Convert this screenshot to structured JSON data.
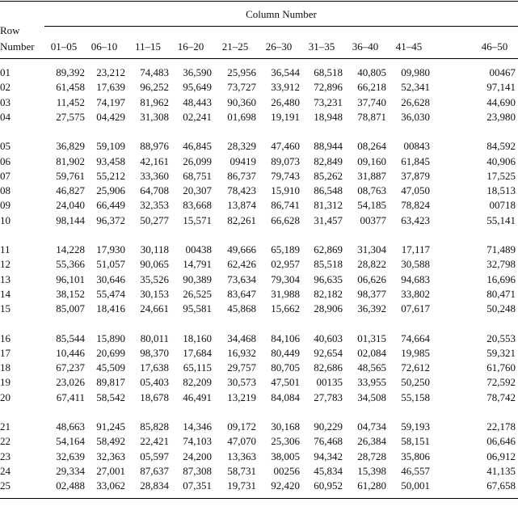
{
  "table": {
    "title": "Column Number",
    "row_header": "Row Number",
    "columns": [
      "01–05",
      "06–10",
      "11–15",
      "16–20",
      "21–25",
      "26–30",
      "31–35",
      "36–40",
      "41–45",
      "46–50"
    ],
    "groups": [
      [
        {
          "row": "01",
          "cells": [
            "89,392",
            "23,212",
            "74,483",
            "36,590",
            "25,956",
            "36,544",
            "68,518",
            "40,805",
            "09,980",
            "00467"
          ]
        },
        {
          "row": "02",
          "cells": [
            "61,458",
            "17,639",
            "96,252",
            "95,649",
            "73,727",
            "33,912",
            "72,896",
            "66,218",
            "52,341",
            "97,141"
          ]
        },
        {
          "row": "03",
          "cells": [
            "11,452",
            "74,197",
            "81,962",
            "48,443",
            "90,360",
            "26,480",
            "73,231",
            "37,740",
            "26,628",
            "44,690"
          ]
        },
        {
          "row": "04",
          "cells": [
            "27,575",
            "04,429",
            "31,308",
            "02,241",
            "01,698",
            "19,191",
            "18,948",
            "78,871",
            "36,030",
            "23,980"
          ]
        }
      ],
      [
        {
          "row": "05",
          "cells": [
            "36,829",
            "59,109",
            "88,976",
            "46,845",
            "28,329",
            "47,460",
            "88,944",
            "08,264",
            "00843",
            "84,592"
          ]
        },
        {
          "row": "06",
          "cells": [
            "81,902",
            "93,458",
            "42,161",
            "26,099",
            "09419",
            "89,073",
            "82,849",
            "09,160",
            "61,845",
            "40,906"
          ]
        },
        {
          "row": "07",
          "cells": [
            "59,761",
            "55,212",
            "33,360",
            "68,751",
            "86,737",
            "79,743",
            "85,262",
            "31,887",
            "37,879",
            "17,525"
          ]
        },
        {
          "row": "08",
          "cells": [
            "46,827",
            "25,906",
            "64,708",
            "20,307",
            "78,423",
            "15,910",
            "86,548",
            "08,763",
            "47,050",
            "18,513"
          ]
        },
        {
          "row": "09",
          "cells": [
            "24,040",
            "66,449",
            "32,353",
            "83,668",
            "13,874",
            "86,741",
            "81,312",
            "54,185",
            "78,824",
            "00718"
          ]
        },
        {
          "row": "10",
          "cells": [
            "98,144",
            "96,372",
            "50,277",
            "15,571",
            "82,261",
            "66,628",
            "31,457",
            "00377",
            "63,423",
            "55,141"
          ]
        }
      ],
      [
        {
          "row": "11",
          "cells": [
            "14,228",
            "17,930",
            "30,118",
            "00438",
            "49,666",
            "65,189",
            "62,869",
            "31,304",
            "17,117",
            "71,489"
          ]
        },
        {
          "row": "12",
          "cells": [
            "55,366",
            "51,057",
            "90,065",
            "14,791",
            "62,426",
            "02,957",
            "85,518",
            "28,822",
            "30,588",
            "32,798"
          ]
        },
        {
          "row": "13",
          "cells": [
            "96,101",
            "30,646",
            "35,526",
            "90,389",
            "73,634",
            "79,304",
            "96,635",
            "06,626",
            "94,683",
            "16,696"
          ]
        },
        {
          "row": "14",
          "cells": [
            "38,152",
            "55,474",
            "30,153",
            "26,525",
            "83,647",
            "31,988",
            "82,182",
            "98,377",
            "33,802",
            "80,471"
          ]
        },
        {
          "row": "15",
          "cells": [
            "85,007",
            "18,416",
            "24,661",
            "95,581",
            "45,868",
            "15,662",
            "28,906",
            "36,392",
            "07,617",
            "50,248"
          ]
        }
      ],
      [
        {
          "row": "16",
          "cells": [
            "85,544",
            "15,890",
            "80,011",
            "18,160",
            "34,468",
            "84,106",
            "40,603",
            "01,315",
            "74,664",
            "20,553"
          ]
        },
        {
          "row": "17",
          "cells": [
            "10,446",
            "20,699",
            "98,370",
            "17,684",
            "16,932",
            "80,449",
            "92,654",
            "02,084",
            "19,985",
            "59,321"
          ]
        },
        {
          "row": "18",
          "cells": [
            "67,237",
            "45,509",
            "17,638",
            "65,115",
            "29,757",
            "80,705",
            "82,686",
            "48,565",
            "72,612",
            "61,760"
          ]
        },
        {
          "row": "19",
          "cells": [
            "23,026",
            "89,817",
            "05,403",
            "82,209",
            "30,573",
            "47,501",
            "00135",
            "33,955",
            "50,250",
            "72,592"
          ]
        },
        {
          "row": "20",
          "cells": [
            "67,411",
            "58,542",
            "18,678",
            "46,491",
            "13,219",
            "84,084",
            "27,783",
            "34,508",
            "55,158",
            "78,742"
          ]
        }
      ],
      [
        {
          "row": "21",
          "cells": [
            "48,663",
            "91,245",
            "85,828",
            "14,346",
            "09,172",
            "30,168",
            "90,229",
            "04,734",
            "59,193",
            "22,178"
          ]
        },
        {
          "row": "22",
          "cells": [
            "54,164",
            "58,492",
            "22,421",
            "74,103",
            "47,070",
            "25,306",
            "76,468",
            "26,384",
            "58,151",
            "06,646"
          ]
        },
        {
          "row": "23",
          "cells": [
            "32,639",
            "32,363",
            "05,597",
            "24,200",
            "13,363",
            "38,005",
            "94,342",
            "28,728",
            "35,806",
            "06,912"
          ]
        },
        {
          "row": "24",
          "cells": [
            "29,334",
            "27,001",
            "87,637",
            "87,308",
            "58,731",
            "00256",
            "45,834",
            "15,398",
            "46,557",
            "41,135"
          ]
        },
        {
          "row": "25",
          "cells": [
            "02,488",
            "33,062",
            "28,834",
            "07,351",
            "19,731",
            "92,420",
            "60,952",
            "61,280",
            "50,001",
            "67,658"
          ]
        }
      ]
    ]
  }
}
